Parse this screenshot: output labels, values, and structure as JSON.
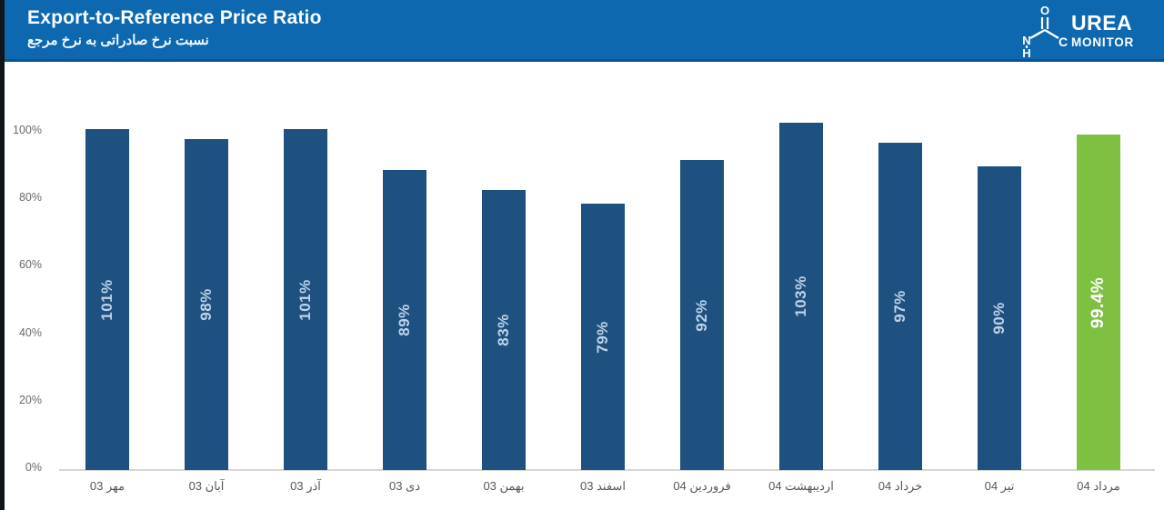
{
  "header": {
    "title": "Export-to-Reference Price Ratio",
    "subtitle_fa": "نسبت نرخ صادراتی به نرخ مرجع",
    "bg_color": "#0d68b0"
  },
  "logo": {
    "brand_line1": "UREA",
    "brand_line2": "MONITOR",
    "atom_o": "O",
    "atom_n": "N",
    "atom_h": "H",
    "atom_c": "C"
  },
  "chart_data": {
    "type": "bar",
    "title": "Export-to-Reference Price Ratio",
    "subtitle": "نسبت نرخ صادراتی به نرخ مرجع",
    "categories": [
      "مهر 03",
      "آبان 03",
      "آذر 03",
      "دی 03",
      "بهمن 03",
      "اسفند 03",
      "فروردین 04",
      "اردیبهشت 04",
      "خرداد 04",
      "تیر 04",
      "مرداد 04"
    ],
    "values": [
      101,
      98,
      101,
      89,
      83,
      79,
      92,
      103,
      97,
      90,
      99.4
    ],
    "value_labels": [
      "101%",
      "98%",
      "101%",
      "89%",
      "83%",
      "79%",
      "92%",
      "103%",
      "97%",
      "90%",
      "99.4%"
    ],
    "y_ticks": [
      {
        "label": "100%",
        "value": 100
      },
      {
        "label": "80%",
        "value": 80
      },
      {
        "label": "60%",
        "value": 60
      },
      {
        "label": "40%",
        "value": 40
      },
      {
        "label": "20%",
        "value": 20
      },
      {
        "label": "0%",
        "value": 0
      }
    ],
    "ylim": [
      0,
      105
    ],
    "grid": false,
    "legend": "none",
    "bar_color": "#1e5080",
    "highlight_color": "#7ec142",
    "highlight_index": 10,
    "value_label_color": "#bdd3e8",
    "highlight_label_color": "#ffffff",
    "axis_text_color": "#6b6b6b",
    "axis_line_color": "#d6d6d6"
  }
}
